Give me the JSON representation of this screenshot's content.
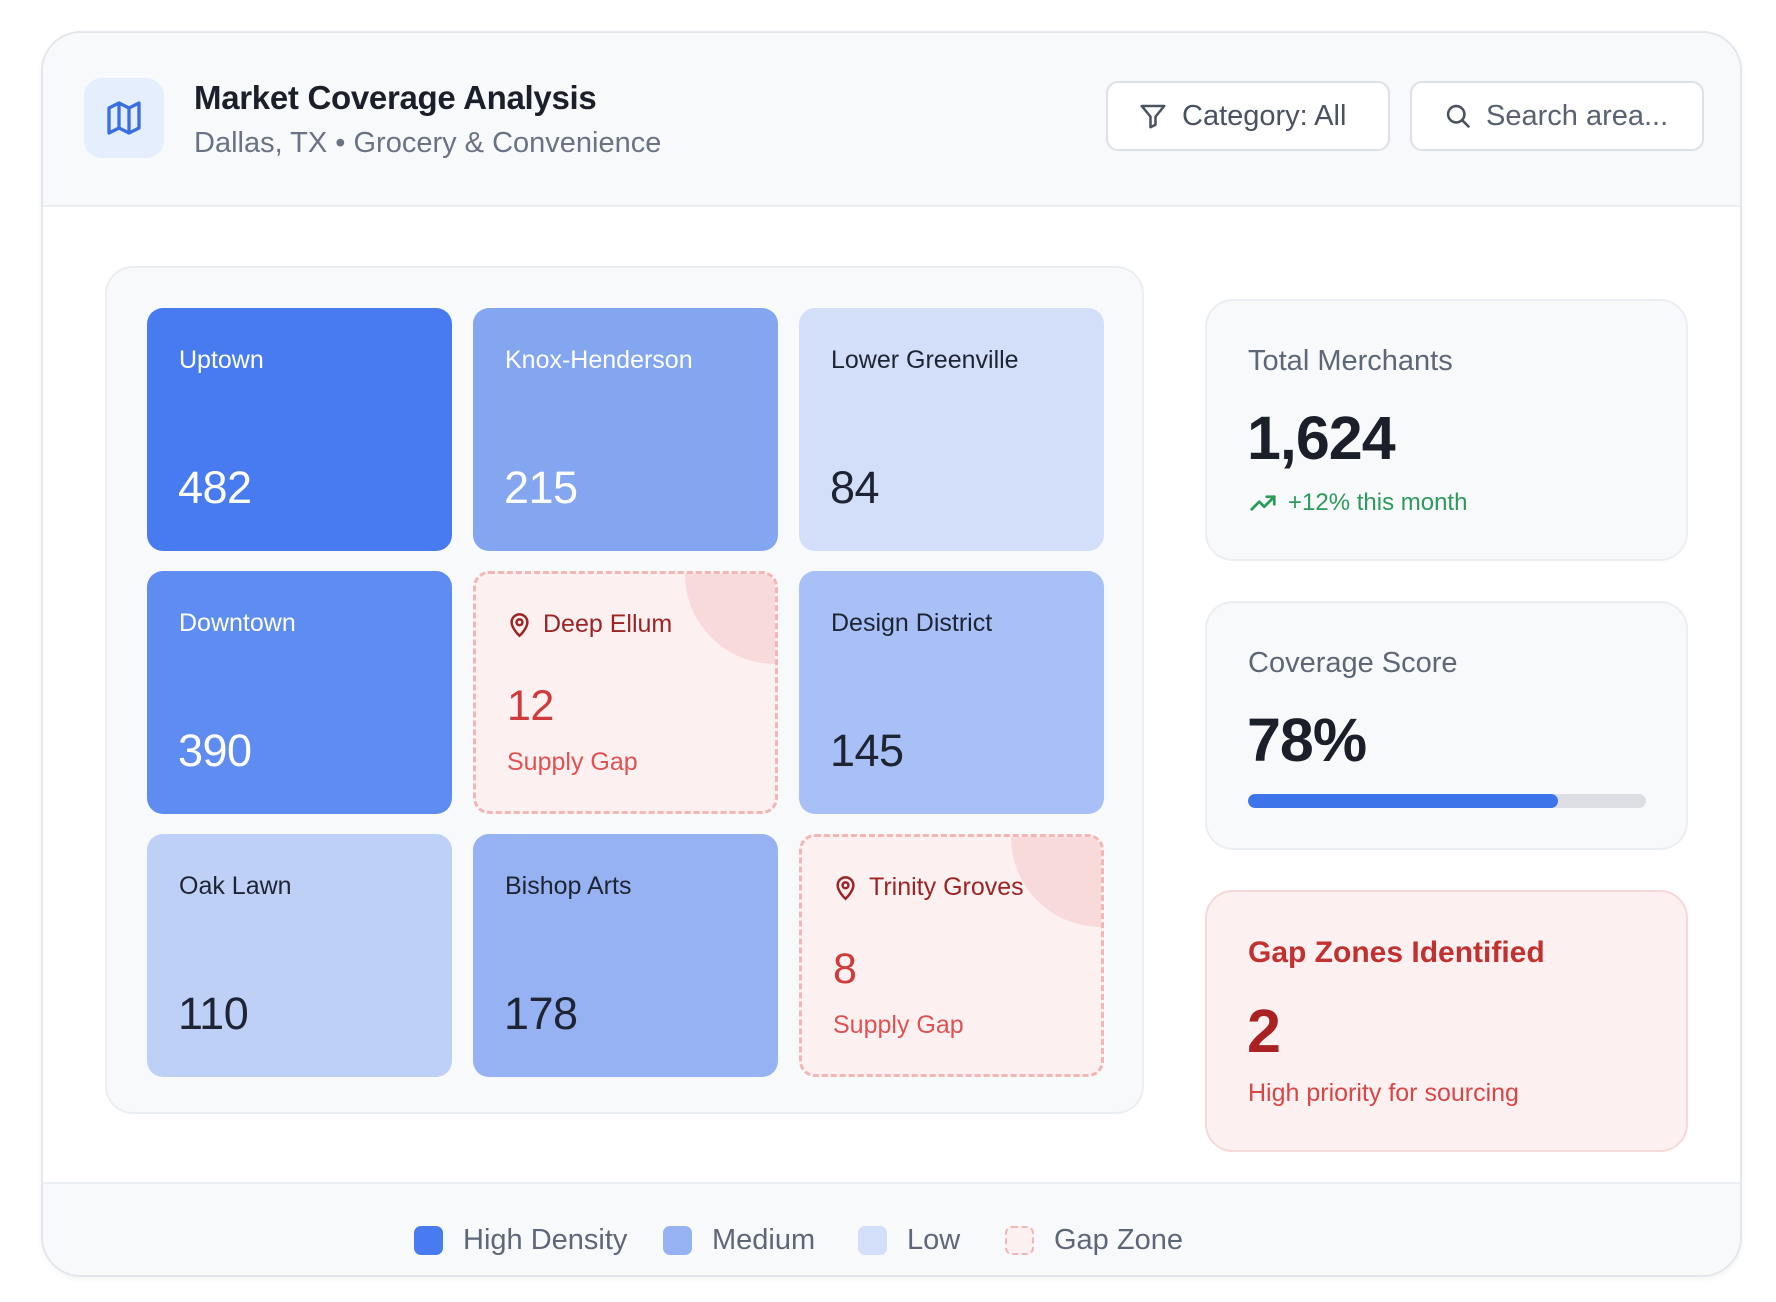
{
  "header": {
    "title": "Market Coverage Analysis",
    "subtitle": "Dallas, TX • Grocery & Convenience",
    "icon": "map-icon",
    "category_button": "Category: All",
    "search_placeholder": "Search area..."
  },
  "tiles": [
    {
      "name": "Uptown",
      "count": "482",
      "level": "high"
    },
    {
      "name": "Knox-Henderson",
      "count": "215",
      "level": "medium"
    },
    {
      "name": "Lower Greenville",
      "count": "84",
      "level": "low"
    },
    {
      "name": "Downtown",
      "count": "390",
      "level": "high"
    },
    {
      "name": "Deep Ellum",
      "count": "12",
      "level": "gap",
      "gap_label": "Supply Gap"
    },
    {
      "name": "Design District",
      "count": "145",
      "level": "medium"
    },
    {
      "name": "Oak Lawn",
      "count": "110",
      "level": "low"
    },
    {
      "name": "Bishop Arts",
      "count": "178",
      "level": "medium"
    },
    {
      "name": "Trinity Groves",
      "count": "8",
      "level": "gap",
      "gap_label": "Supply Gap"
    }
  ],
  "stats": {
    "total_merchants": {
      "label": "Total Merchants",
      "value": "1,624",
      "trend": "+12% this month"
    },
    "coverage_score": {
      "label": "Coverage Score",
      "value": "78%",
      "progress": 0.78
    },
    "gap_zones": {
      "label": "Gap Zones Identified",
      "value": "2",
      "note": "High priority for sourcing"
    }
  },
  "legend": [
    {
      "label": "High Density",
      "color": "#477bef"
    },
    {
      "label": "Medium",
      "color": "#96b2f3"
    },
    {
      "label": "Low",
      "color": "#d3def9"
    },
    {
      "label": "Gap Zone",
      "color": "#fcf0f0"
    }
  ],
  "colors": {
    "accent": "#3d74ea",
    "gap": "#cf3a3a",
    "positive": "#2c9a5a"
  }
}
